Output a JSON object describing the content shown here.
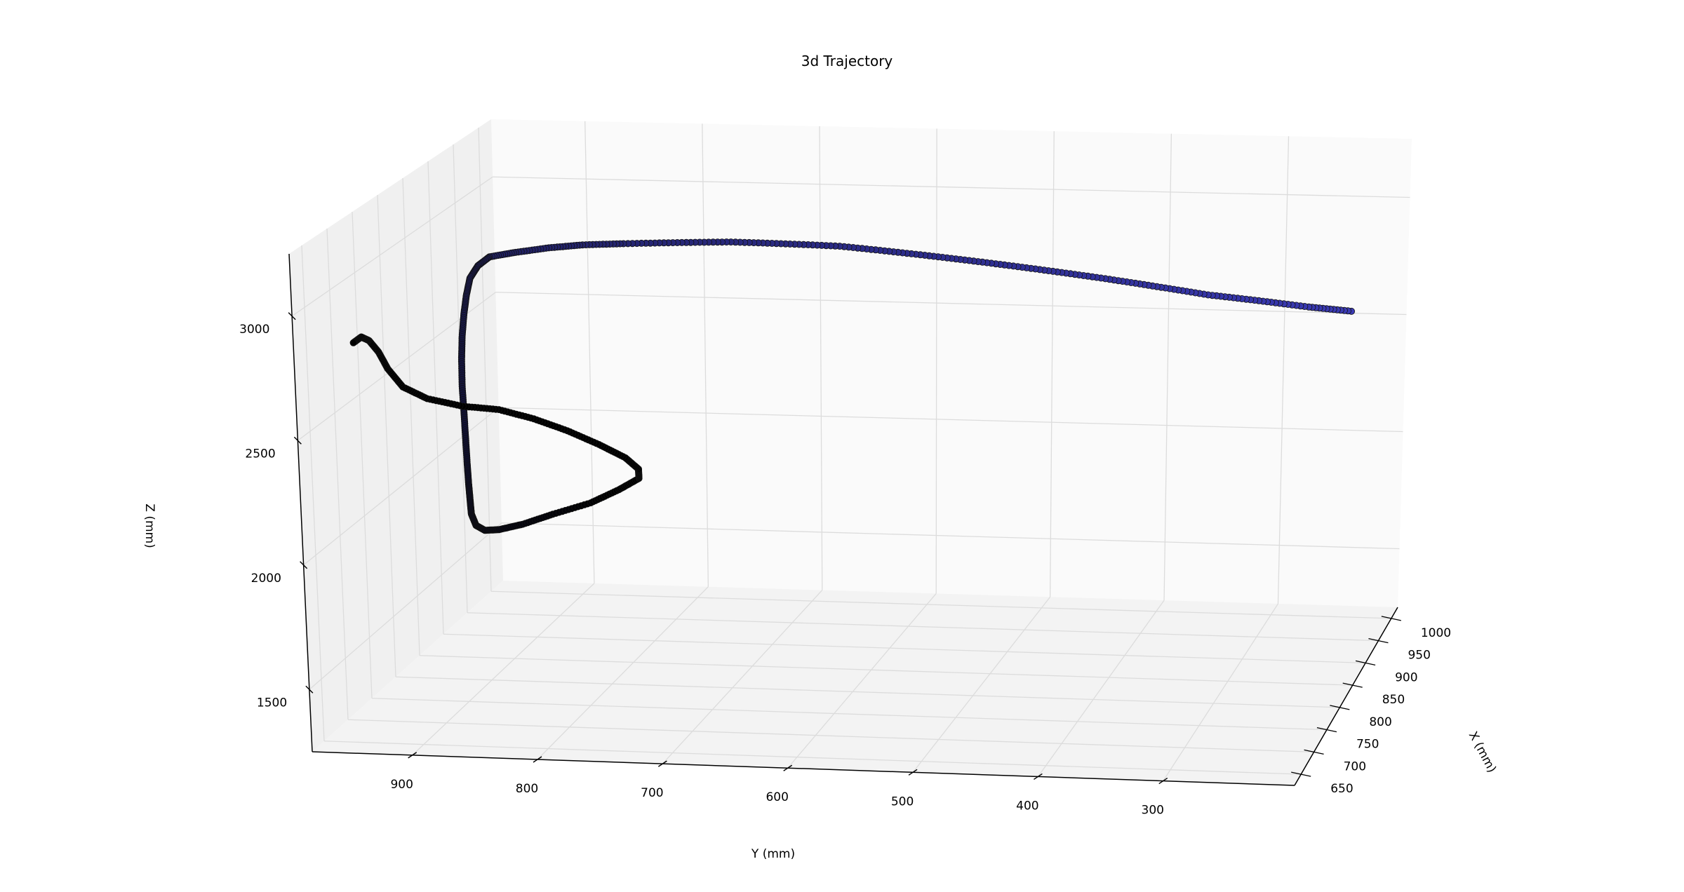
{
  "chart_data": {
    "type": "scatter",
    "projection": "3d",
    "title": "3d Trajectory",
    "xlabel": "X (mm)",
    "ylabel": "Y (mm)",
    "zlabel": "Z (mm)",
    "xlim": [
      625,
      1025
    ],
    "ylim": [
      195,
      980
    ],
    "zlim": [
      1250,
      3250
    ],
    "xticks": [
      650,
      700,
      750,
      800,
      850,
      900,
      950,
      1000
    ],
    "yticks": [
      300,
      400,
      500,
      600,
      700,
      800,
      900
    ],
    "zticks": [
      1500,
      2000,
      2500,
      3000
    ],
    "grid": true,
    "series": [
      {
        "marker": "o",
        "color_start": "#3a3ab4",
        "color_end": "#000000",
        "points": [
          [
            840,
            205,
            2580
          ],
          [
            840,
            240,
            2600
          ],
          [
            835,
            280,
            2630
          ],
          [
            828,
            320,
            2660
          ],
          [
            820,
            360,
            2700
          ],
          [
            812,
            400,
            2740
          ],
          [
            802,
            440,
            2780
          ],
          [
            792,
            480,
            2820
          ],
          [
            782,
            520,
            2860
          ],
          [
            772,
            560,
            2900
          ],
          [
            762,
            600,
            2940
          ],
          [
            752,
            640,
            2970
          ],
          [
            742,
            680,
            3000
          ],
          [
            735,
            720,
            3020
          ],
          [
            728,
            760,
            3040
          ],
          [
            722,
            790,
            3055
          ],
          [
            718,
            815,
            3060
          ],
          [
            715,
            840,
            3058
          ],
          [
            714,
            860,
            3052
          ],
          [
            716,
            870,
            3020
          ],
          [
            720,
            878,
            2970
          ],
          [
            725,
            883,
            2900
          ],
          [
            732,
            888,
            2820
          ],
          [
            740,
            893,
            2720
          ],
          [
            748,
            897,
            2620
          ],
          [
            758,
            901,
            2500
          ],
          [
            768,
            904,
            2380
          ],
          [
            780,
            908,
            2260
          ],
          [
            792,
            912,
            2140
          ],
          [
            804,
            916,
            2040
          ],
          [
            816,
            920,
            1960
          ],
          [
            828,
            924,
            1880
          ],
          [
            842,
            926,
            1810
          ],
          [
            860,
            926,
            1760
          ],
          [
            880,
            922,
            1730
          ],
          [
            900,
            910,
            1720
          ],
          [
            914,
            890,
            1740
          ],
          [
            920,
            860,
            1780
          ],
          [
            918,
            835,
            1840
          ],
          [
            910,
            815,
            1900
          ],
          [
            896,
            810,
            1960
          ],
          [
            880,
            815,
            2030
          ],
          [
            862,
            830,
            2110
          ],
          [
            846,
            850,
            2190
          ],
          [
            832,
            872,
            2260
          ],
          [
            818,
            895,
            2320
          ],
          [
            802,
            918,
            2360
          ],
          [
            785,
            940,
            2420
          ],
          [
            772,
            954,
            2490
          ],
          [
            763,
            962,
            2580
          ],
          [
            756,
            966,
            2660
          ],
          [
            748,
            970,
            2720
          ],
          [
            738,
            972,
            2750
          ],
          [
            728,
            975,
            2740
          ]
        ]
      }
    ]
  }
}
